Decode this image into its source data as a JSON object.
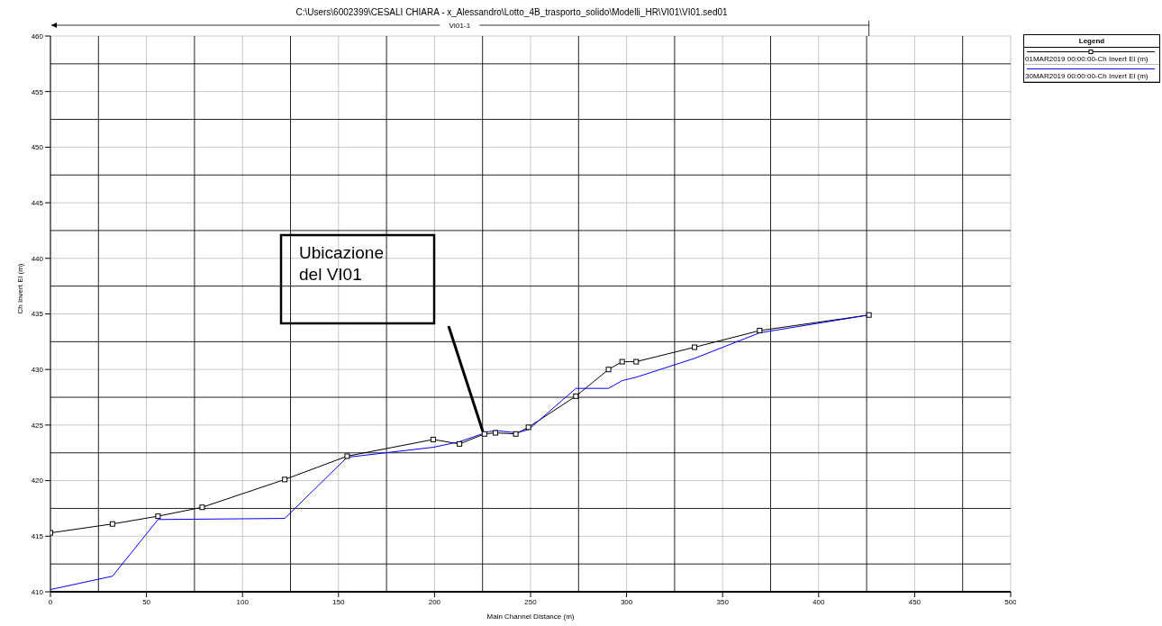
{
  "chart_data": {
    "type": "line",
    "title": "C:\\Users\\6002399\\CESALI CHIARA - x_Alessandro\\Lotto_4B_trasporto_solido\\Modelli_HR\\VI01\\VI01.sed01",
    "xlabel": "Main Channel Distance (m)",
    "ylabel": "Ch Invert El (m)",
    "legend_title": "Legend",
    "series": [
      {
        "name": "01MAR2019 00:00:00-Ch Invert El (m)",
        "color": "#000000",
        "marker": "square",
        "x": [
          0,
          32.3,
          56,
          79,
          122,
          154.5,
          199.3,
          213,
          226,
          231.7,
          242.3,
          248.9,
          273.6,
          290.6,
          297.7,
          305,
          335.4,
          369.3,
          426.2
        ],
        "values": [
          415.3,
          416.1,
          416.8,
          417.6,
          420.1,
          422.2,
          423.7,
          423.3,
          424.2,
          424.3,
          424.2,
          424.8,
          427.6,
          430.0,
          430.7,
          430.7,
          432.0,
          433.5,
          434.9
        ]
      },
      {
        "name": "30MAR2019 00:00:00-Ch Invert El (m)",
        "color": "#0000ff",
        "marker": "none",
        "x": [
          0,
          32.3,
          56,
          122,
          154.5,
          199.3,
          213,
          228,
          232,
          243,
          249,
          273.6,
          290.6,
          297.7,
          305,
          335.4,
          369.3,
          426.2
        ],
        "values": [
          410.2,
          411.4,
          416.5,
          416.6,
          422.1,
          423.0,
          423.5,
          424.4,
          424.5,
          424.3,
          424.6,
          428.3,
          428.3,
          429.0,
          429.3,
          431.0,
          433.3,
          434.9
        ]
      }
    ],
    "annotations": [
      "VI01-1",
      "Ubicazione\ndel VI01"
    ],
    "xlim": [
      0,
      500
    ],
    "xticks": [
      0,
      50,
      100,
      150,
      200,
      250,
      300,
      350,
      400,
      450,
      500
    ],
    "ylim": [
      410,
      460
    ],
    "yticks": [
      410,
      415,
      420,
      425,
      430,
      435,
      440,
      445,
      450,
      455,
      460
    ],
    "grid": true,
    "legend": "top right",
    "line_style": "solid"
  }
}
